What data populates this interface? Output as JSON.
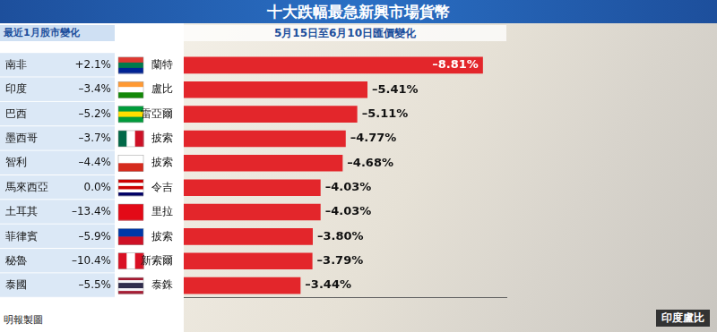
{
  "title": "十大跌幅最急新興市場貨幣",
  "table": {
    "header": "最近1月股市變化",
    "rows": [
      [
        "南非",
        "+2.1%"
      ],
      [
        "印度",
        "–3.4%"
      ],
      [
        "巴西",
        "–5.2%"
      ],
      [
        "墨西哥",
        "–3.7%"
      ],
      [
        "智利",
        "–4.4%"
      ],
      [
        "馬來西亞",
        "0.0%"
      ],
      [
        "土耳其",
        "–13.4%"
      ],
      [
        "菲律賓",
        "–5.9%"
      ],
      [
        "秘魯",
        "–10.4%"
      ],
      [
        "泰國",
        "–5.5%"
      ]
    ]
  },
  "chart_data": {
    "type": "bar",
    "orientation": "horizontal",
    "subtitle": "5月15日至6月10日匯價變化",
    "categories": [
      "蘭特",
      "盧比",
      "雷亞爾",
      "披索",
      "披索",
      "令吉",
      "里拉",
      "披索",
      "新索爾",
      "泰銖"
    ],
    "values": [
      -8.81,
      -5.41,
      -5.11,
      -4.77,
      -4.68,
      -4.03,
      -4.03,
      -3.8,
      -3.79,
      -3.44
    ],
    "value_labels": [
      "–8.81%",
      "–5.41%",
      "–5.11%",
      "–4.77%",
      "–4.68%",
      "–4.03%",
      "–4.03%",
      "–3.80%",
      "–3.79%",
      "–3.44%"
    ],
    "color": "#e3262b",
    "xlim": [
      0,
      -9.5
    ],
    "data_labels": true,
    "tick_labels": "y",
    "grid": false
  },
  "source": "明報製圖",
  "caption": "印度盧比"
}
